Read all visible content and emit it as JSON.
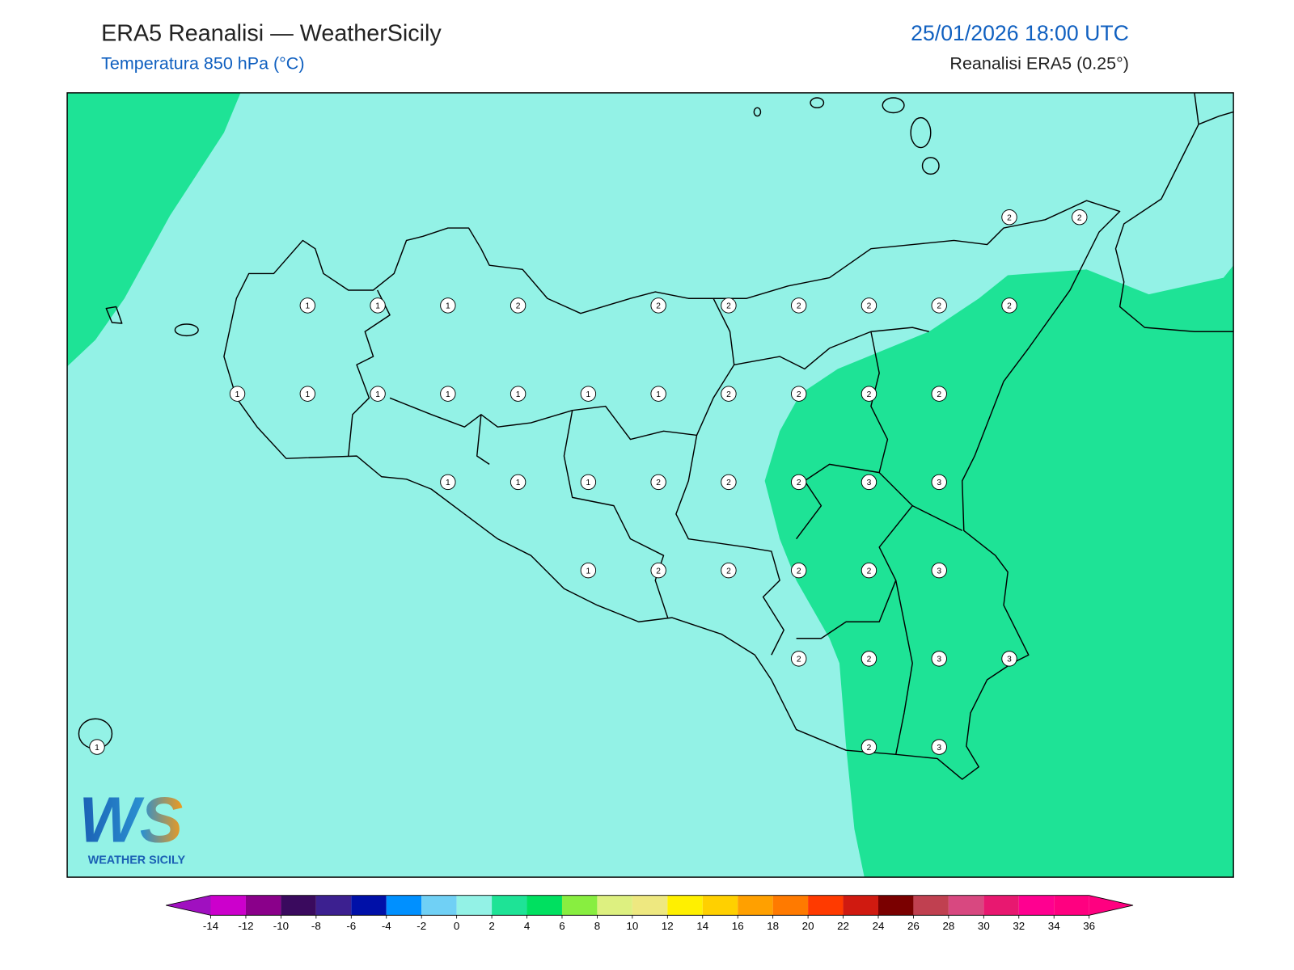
{
  "header": {
    "title": "ERA5 Reanalisi — WeatherSicily",
    "subtitle": "Temperatura 850 hPa (°C)",
    "date": "25/01/2026 18:00 UTC",
    "source": "Reanalisi ERA5 (0.25°)"
  },
  "map": {
    "background_color": "#93f2e6",
    "shade_color": "#1ee396",
    "coast_color": "#000000",
    "grid_values": [
      [
        null,
        null,
        null,
        null,
        null,
        null,
        null,
        null,
        null,
        null,
        null,
        null,
        null,
        2,
        2
      ],
      [
        null,
        null,
        null,
        1,
        1,
        1,
        2,
        null,
        2,
        2,
        2,
        2,
        2,
        2,
        null
      ],
      [
        null,
        null,
        1,
        1,
        1,
        1,
        1,
        1,
        1,
        2,
        2,
        2,
        2,
        null,
        null
      ],
      [
        null,
        null,
        null,
        null,
        null,
        1,
        1,
        1,
        2,
        2,
        2,
        3,
        3,
        null,
        null
      ],
      [
        null,
        null,
        null,
        null,
        null,
        null,
        null,
        1,
        2,
        2,
        2,
        2,
        3,
        null,
        null
      ],
      [
        null,
        null,
        null,
        null,
        null,
        null,
        null,
        null,
        null,
        null,
        2,
        2,
        3,
        3,
        null
      ],
      [
        1,
        null,
        null,
        null,
        null,
        null,
        null,
        null,
        null,
        null,
        null,
        2,
        3,
        null,
        null
      ]
    ]
  },
  "logo": {
    "letters": "WS",
    "name": "WEATHER SICILY"
  },
  "colorbar": {
    "clim": [
      -14,
      36
    ],
    "ticks": [
      -14,
      -12,
      -10,
      -8,
      -6,
      -4,
      -2,
      0,
      2,
      4,
      6,
      8,
      10,
      12,
      14,
      16,
      18,
      20,
      22,
      24,
      26,
      28,
      30,
      32,
      34,
      36
    ],
    "under_color": "#a010c0",
    "over_color": "#ff0080",
    "colors": [
      "#cc00cc",
      "#8a008a",
      "#3a0a5e",
      "#3c2090",
      "#0010a8",
      "#0090ff",
      "#70d0f5",
      "#93f2e6",
      "#1ee396",
      "#00e060",
      "#88ee40",
      "#ddf080",
      "#eee880",
      "#fff000",
      "#ffd000",
      "#ffa000",
      "#ff7a00",
      "#ff3a00",
      "#d01a10",
      "#7a0000",
      "#c04050",
      "#d84880",
      "#e81870",
      "#ff0090",
      "#ff0080"
    ]
  }
}
